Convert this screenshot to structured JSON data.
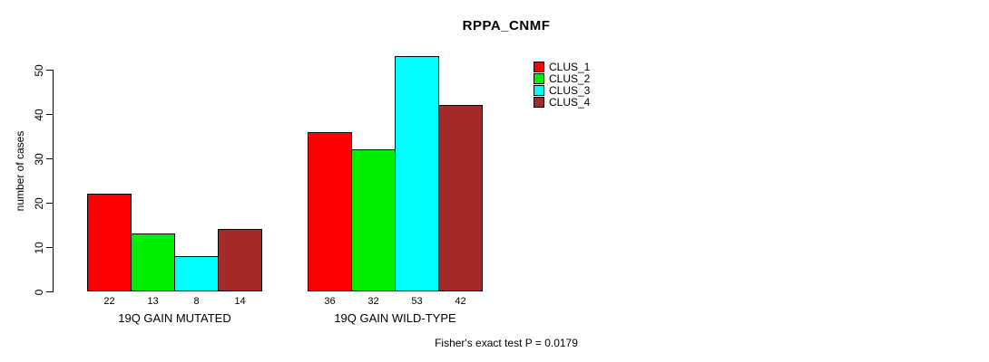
{
  "chart_data": {
    "type": "bar",
    "title": "RPPA_CNMF",
    "xlabel": "",
    "ylabel": "number of cases",
    "ylim": [
      0,
      50
    ],
    "yticks": [
      "0",
      "10",
      "20",
      "30",
      "40",
      "50"
    ],
    "grid": false,
    "legend_position": "top-right",
    "categories": [
      "19Q GAIN MUTATED",
      "19Q GAIN WILD-TYPE"
    ],
    "series": [
      {
        "name": "CLUS_1",
        "color": "#FF0000",
        "values": [
          22,
          36
        ]
      },
      {
        "name": "CLUS_2",
        "color": "#00EE00",
        "values": [
          13,
          32
        ]
      },
      {
        "name": "CLUS_3",
        "color": "#00FFFF",
        "values": [
          8,
          53
        ]
      },
      {
        "name": "CLUS_4",
        "color": "#A52A2A",
        "values": [
          14,
          42
        ]
      }
    ],
    "bar_value_labels": [
      [
        "22",
        "13",
        "8",
        "14"
      ],
      [
        "36",
        "32",
        "53",
        "42"
      ]
    ],
    "annotation": "Fisher's exact test P = 0.0179"
  }
}
